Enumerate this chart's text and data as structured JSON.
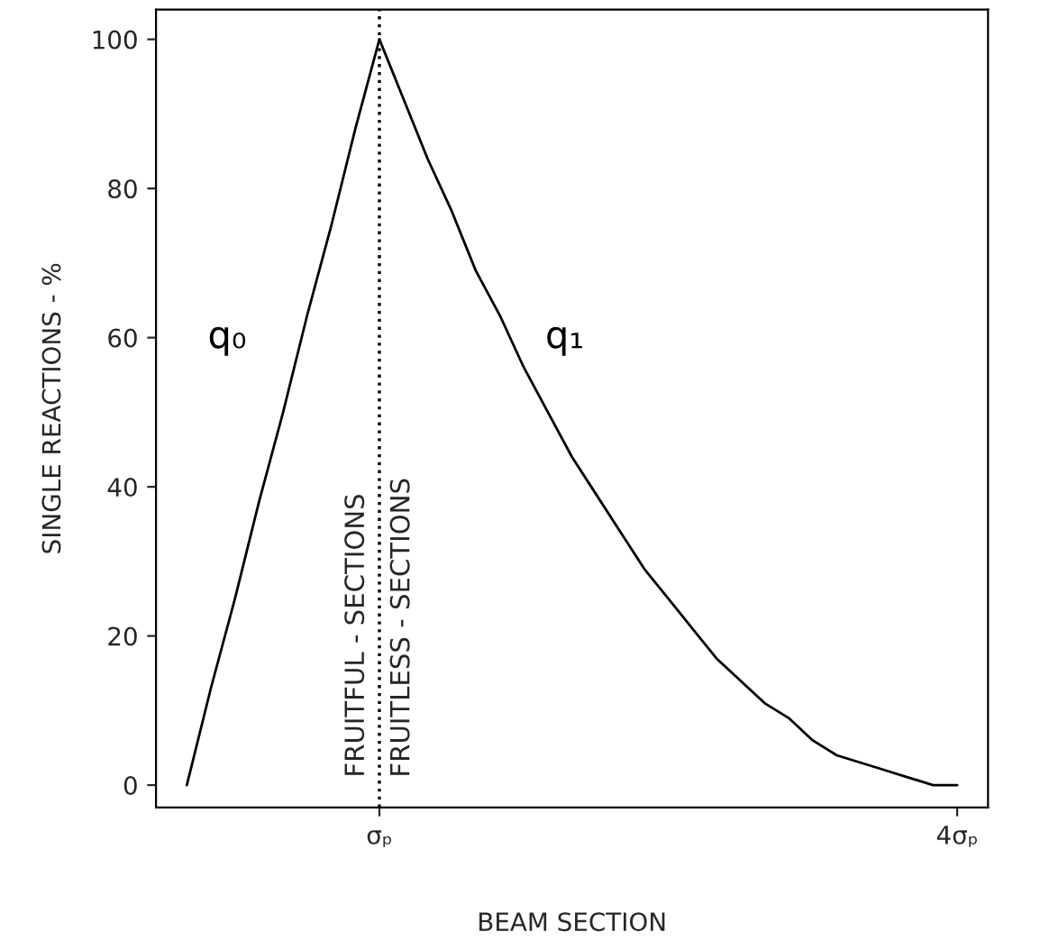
{
  "chart_data": {
    "type": "line",
    "xlabel": "BEAM SECTION",
    "ylabel": "SINGLE REACTIONS - %",
    "categories": [
      null,
      null,
      null,
      null,
      null,
      null,
      null,
      null,
      "σₚ",
      null,
      null,
      null,
      null,
      null,
      null,
      null,
      null,
      null,
      null,
      null,
      null,
      null,
      null,
      null,
      null,
      null,
      null,
      null,
      null,
      null,
      null,
      null,
      "4σₚ"
    ],
    "series": [
      {
        "name": "q₀",
        "color": "#000000",
        "values": [
          0,
          13,
          25,
          38,
          50,
          63,
          75,
          88,
          100,
          null,
          null,
          null,
          null,
          null,
          null,
          null,
          null,
          null,
          null,
          null,
          null,
          null,
          null,
          null,
          null,
          null,
          null,
          null,
          null,
          null,
          null,
          null,
          null
        ]
      },
      {
        "name": "q₁",
        "color": "#000000",
        "values": [
          null,
          null,
          null,
          null,
          null,
          null,
          null,
          null,
          100,
          92,
          84,
          77,
          69,
          63,
          56,
          50,
          44,
          39,
          34,
          29,
          25,
          21,
          17,
          14,
          11,
          9,
          6,
          4,
          3,
          2,
          1,
          0,
          0
        ]
      }
    ],
    "ylim": [
      -3,
      104
    ],
    "yticks": [
      0,
      20,
      40,
      60,
      80,
      100
    ],
    "ref_lines": [
      {
        "axis": "x",
        "value": "σₚ",
        "color": "#000000",
        "line_style": "dotted"
      }
    ],
    "annotations": [
      "FRUITFUL - SECTIONS",
      "FRUITLESS - SECTIONS"
    ],
    "grid": false,
    "legend": false,
    "marker": "none",
    "line_style": "solid"
  }
}
